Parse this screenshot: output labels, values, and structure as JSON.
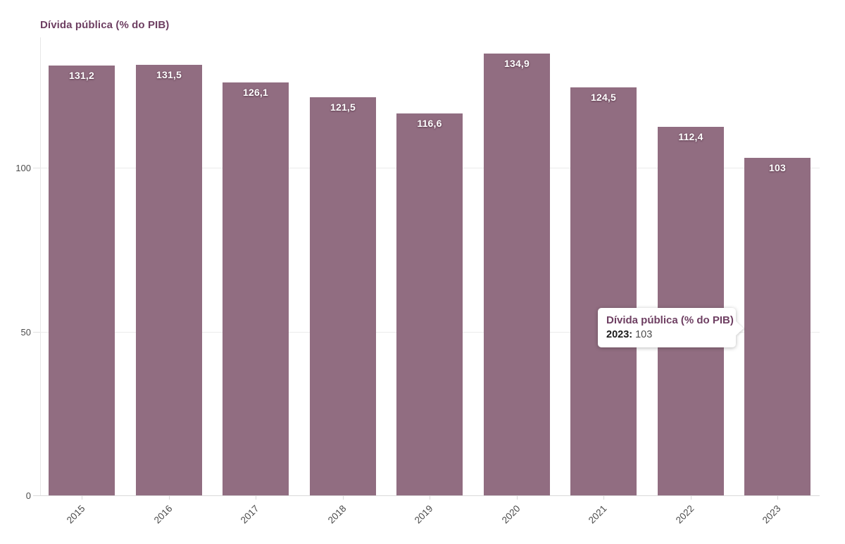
{
  "title": "Dívida pública (% do PIB)",
  "chart_data": {
    "type": "bar",
    "title": "Dívida pública (% do PIB)",
    "xlabel": "",
    "ylabel": "",
    "categories": [
      "2015",
      "2016",
      "2017",
      "2018",
      "2019",
      "2020",
      "2021",
      "2022",
      "2023"
    ],
    "values": [
      131.2,
      131.5,
      126.1,
      121.5,
      116.6,
      134.9,
      124.5,
      112.4,
      103
    ],
    "value_labels": [
      "131,2",
      "131,5",
      "126,1",
      "121,5",
      "116,6",
      "134,9",
      "124,5",
      "112,4",
      "103"
    ],
    "ylim": [
      0,
      140
    ],
    "yticks": [
      0,
      50,
      100
    ],
    "ytick_labels": [
      "0",
      "50",
      "100"
    ],
    "grid": true,
    "legend": "none",
    "x_label_rotation": -45
  },
  "tooltip": {
    "title": "Dívida pública (% do PIB)",
    "label": "2023:",
    "value": "103"
  },
  "colors": {
    "bar": "#916d81",
    "title": "#6e3f62",
    "value_label": "#ffffff",
    "axis_text": "#4d4d4d",
    "gridline": "#ebebeb",
    "axis_line": "#d9d9d9",
    "background": "#ffffff",
    "tooltip_bg": "#ffffff"
  }
}
